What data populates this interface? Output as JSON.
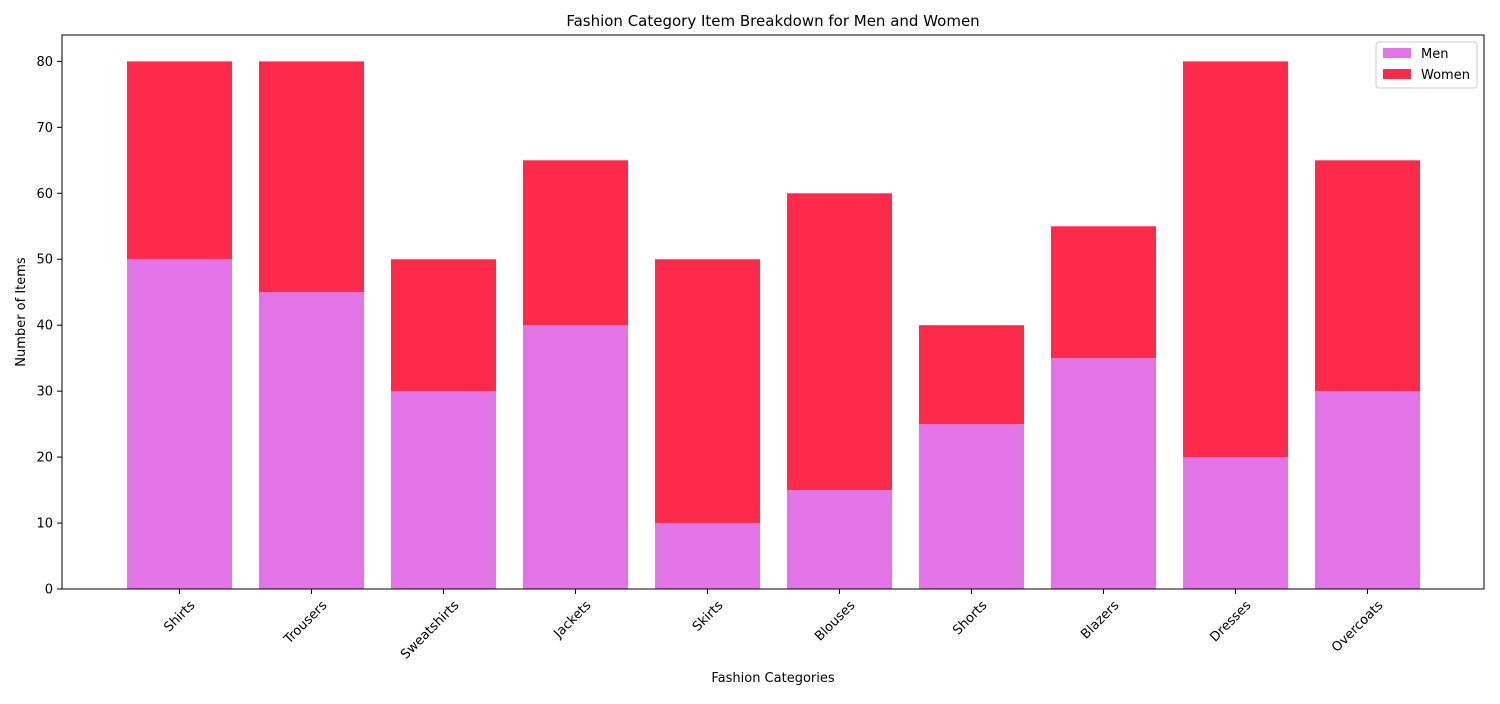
{
  "chart_data": {
    "type": "bar",
    "stacked": true,
    "title": "Fashion Category Item Breakdown for Men and Women",
    "xlabel": "Fashion Categories",
    "ylabel": "Number of Items",
    "categories": [
      "Shirts",
      "Trousers",
      "Sweatshirts",
      "Jackets",
      "Skirts",
      "Blouses",
      "Shorts",
      "Blazers",
      "Dresses",
      "Overcoats"
    ],
    "series": [
      {
        "name": "Men",
        "color": "#e374e8",
        "values": [
          50,
          45,
          30,
          40,
          10,
          15,
          25,
          35,
          20,
          30
        ]
      },
      {
        "name": "Women",
        "color": "#ff2a4a",
        "values": [
          30,
          35,
          20,
          25,
          40,
          45,
          15,
          20,
          60,
          35
        ]
      }
    ],
    "ylim": [
      0,
      84
    ],
    "yticks": [
      0,
      10,
      20,
      30,
      40,
      50,
      60,
      70,
      80
    ],
    "grid": false,
    "legend_position": "top-right",
    "xtick_rotation_deg": 45
  }
}
